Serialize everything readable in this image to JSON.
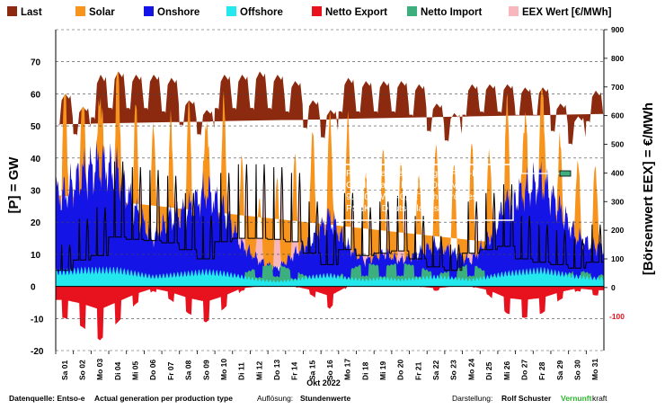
{
  "chart_data": {
    "type": "area",
    "legend": [
      {
        "name": "Last",
        "color": "#8B2A0E"
      },
      {
        "name": "Solar",
        "color": "#F7941D"
      },
      {
        "name": "Onshore",
        "color": "#1414E6"
      },
      {
        "name": "Offshore",
        "color": "#23E8EE"
      },
      {
        "name": "Netto Export",
        "color": "#E8121E"
      },
      {
        "name": "Netto Import",
        "color": "#3DAE7E"
      },
      {
        "name": "EEX Wert [€/MWh]",
        "color": "#F7B7BD"
      }
    ],
    "ylabel_left": "[P] = GW",
    "ylabel_right": "[Börsenwert EEX] = €/MWh",
    "xlabel": "Okt 2022",
    "left_axis": {
      "ylim": [
        -20,
        80
      ],
      "ticks": [
        "70",
        "60",
        "50",
        "40",
        "30",
        "20",
        "10",
        "0",
        "-10",
        "-20"
      ]
    },
    "right_axis": {
      "ylim": [
        -220,
        900
      ],
      "ticks": [
        "900",
        "800",
        "700",
        "600",
        "500",
        "400",
        "300",
        "200",
        "100",
        "0"
      ],
      "negative_tick": "-100"
    },
    "categories": [
      "Sa 01",
      "So 02",
      "Mo 03",
      "Di 04",
      "Mi 05",
      "Do 06",
      "Fr 07",
      "Sa 08",
      "So 09",
      "Mo 10",
      "Di 11",
      "Mi 12",
      "Do 13",
      "Fr 14",
      "Sa 15",
      "So 16",
      "Mo 17",
      "Di 18",
      "Mi 19",
      "Do 20",
      "Fr 21",
      "Sa 22",
      "So 23",
      "Mo 24",
      "Di 25",
      "Mi 26",
      "Do 27",
      "Fr 28",
      "Sa 29",
      "So 30",
      "Mo 31"
    ],
    "series": [
      {
        "name": "Last",
        "unit": "GW",
        "daily_min": [
          50,
          47,
          52,
          55,
          55,
          55,
          54,
          50,
          47,
          55,
          55,
          55,
          55,
          54,
          49,
          46,
          54,
          54,
          54,
          54,
          53,
          48,
          45,
          53,
          54,
          54,
          53,
          53,
          48,
          44,
          51
        ],
        "daily_max": [
          60,
          56,
          66,
          67,
          66,
          66,
          65,
          58,
          55,
          66,
          66,
          67,
          66,
          64,
          58,
          55,
          65,
          64,
          64,
          64,
          63,
          57,
          54,
          63,
          63,
          63,
          62,
          62,
          57,
          53,
          61
        ]
      },
      {
        "name": "Solar",
        "unit": "GW",
        "daily_peak": [
          36,
          30,
          25,
          38,
          32,
          37,
          30,
          33,
          25,
          34,
          26,
          20,
          28,
          30,
          35,
          33,
          40,
          28,
          33,
          30,
          25,
          32,
          27,
          38,
          28,
          30,
          25,
          34,
          20,
          25,
          26
        ]
      },
      {
        "name": "Onshore",
        "unit": "GW",
        "daily_mean": [
          24,
          30,
          33,
          30,
          20,
          12,
          18,
          20,
          25,
          20,
          10,
          6,
          4,
          8,
          12,
          18,
          10,
          6,
          8,
          6,
          8,
          10,
          8,
          6,
          12,
          22,
          25,
          28,
          20,
          12,
          10
        ]
      },
      {
        "name": "Offshore",
        "unit": "GW",
        "daily_mean": [
          4.5,
          5,
          5,
          5,
          4,
          3,
          3.5,
          4,
          4.5,
          4,
          3,
          2,
          1.5,
          2,
          3,
          3.5,
          2.5,
          2,
          2.5,
          2,
          2.5,
          3,
          2.5,
          2,
          3,
          4,
          4.5,
          5,
          4,
          3,
          2.5
        ]
      },
      {
        "name": "Netto Export",
        "unit": "GW",
        "daily_mean": [
          -7,
          -9,
          -12,
          -8,
          -4,
          -1,
          -3,
          -6,
          -8,
          -5,
          -1,
          0,
          0,
          0,
          -2,
          -5,
          0,
          0,
          0,
          0,
          0,
          -1,
          0,
          0,
          -2,
          -6,
          -7,
          -6,
          -3,
          -1,
          -2
        ]
      },
      {
        "name": "Netto Import",
        "unit": "GW",
        "daily_mean": [
          0,
          0,
          0,
          0,
          0,
          1,
          0,
          0,
          0,
          0,
          2,
          4,
          5,
          3,
          1,
          0,
          3,
          5,
          4,
          5,
          4,
          2,
          3,
          5,
          2,
          0,
          0,
          0,
          1,
          3,
          2
        ]
      },
      {
        "name": "EEX Wert [€/MWh]",
        "unit": "€/MWh",
        "daily_peak": [
          150,
          240,
          280,
          440,
          420,
          410,
          390,
          330,
          250,
          400,
          430,
          430,
          420,
          400,
          300,
          200,
          330,
          280,
          300,
          320,
          250,
          180,
          150,
          300,
          330,
          360,
          250,
          220,
          200,
          170,
          220
        ]
      }
    ],
    "annotation": "Pumpspeichervermögen PSp-KW Goldisthal: 9 h mit 1.060 MW, 9.540 MWh=0,01TWh. Größtes PSpKW Deutschlands!"
  },
  "footer": {
    "source_label": "Datenquelle: Entso-e",
    "source_value": "Actual generation per production type",
    "resolution_label": "Auflösung:",
    "resolution_value": "Stundenwerte",
    "credit_label": "Darstellung:",
    "credit_name": "Rolf Schuster",
    "brand_green": "Vernunft",
    "brand_black": "kraft"
  }
}
